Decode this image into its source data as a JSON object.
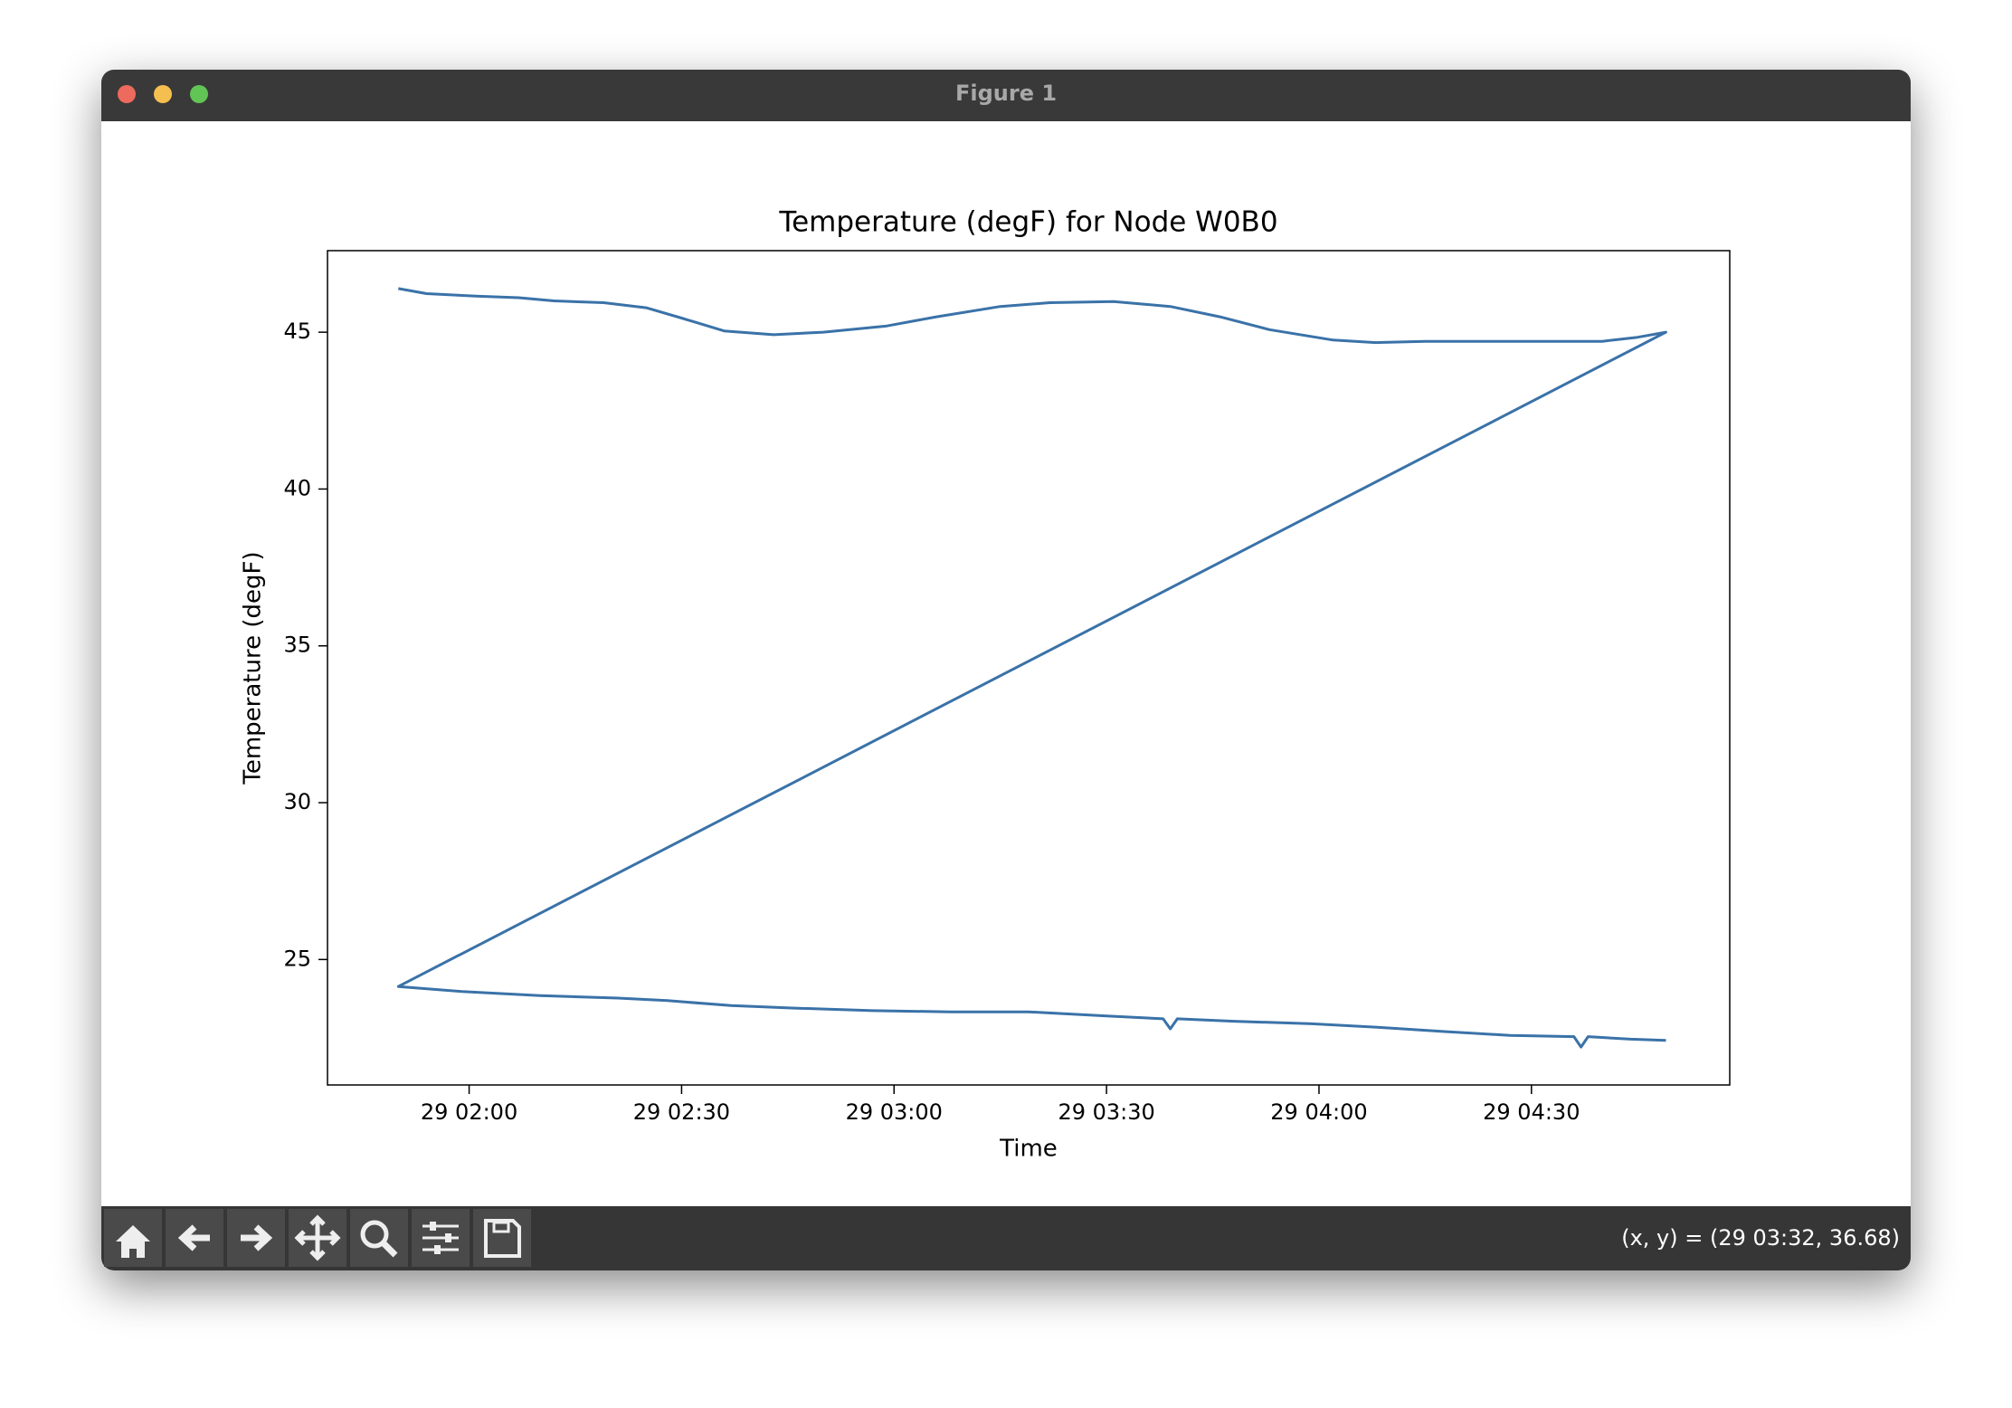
{
  "window": {
    "title": "Figure 1",
    "status": "(x, y) = (29 03:32, 36.68)"
  },
  "chart_data": {
    "type": "line",
    "title": "Temperature (degF) for Node W0B0",
    "x_label": "Time",
    "y_label": "Temperature (degF)",
    "color": "#3a72a8",
    "grid": false,
    "x": [
      "29 01:50",
      "29 01:54",
      "29 02:01",
      "29 02:07",
      "29 02:12",
      "29 02:19",
      "29 02:25",
      "29 02:30",
      "29 02:36",
      "29 02:43",
      "29 02:50",
      "29 02:59",
      "29 03:06",
      "29 03:15",
      "29 03:22",
      "29 03:31",
      "29 03:39",
      "29 03:46",
      "29 03:53",
      "29 04:02",
      "29 04:08",
      "29 04:15",
      "29 04:22",
      "29 04:31",
      "29 04:40",
      "29 04:45",
      "29 04:49",
      "29 01:50",
      "29 01:59",
      "29 02:10",
      "29 02:21",
      "29 02:28",
      "29 02:37",
      "29 02:46",
      "29 02:57",
      "29 03:08",
      "29 03:19",
      "29 03:30",
      "29 03:38",
      "29 03:39",
      "29 03:40",
      "29 03:48",
      "29 03:59",
      "29 04:09",
      "29 04:18",
      "29 04:27",
      "29 04:36",
      "29 04:37",
      "29 04:38",
      "29 04:44",
      "29 04:49"
    ],
    "values": [
      46.39,
      46.23,
      46.15,
      46.1,
      46.0,
      45.94,
      45.78,
      45.45,
      45.04,
      44.92,
      45.0,
      45.2,
      45.49,
      45.82,
      45.94,
      45.98,
      45.82,
      45.49,
      45.08,
      44.75,
      44.67,
      44.71,
      44.71,
      44.71,
      44.71,
      44.84,
      45.0,
      24.14,
      23.98,
      23.85,
      23.77,
      23.69,
      23.53,
      23.45,
      23.37,
      23.33,
      23.33,
      23.2,
      23.11,
      22.79,
      23.11,
      23.03,
      22.95,
      22.83,
      22.7,
      22.58,
      22.54,
      22.21,
      22.54,
      22.46,
      22.42
    ],
    "xlim": [
      "29 01:40",
      "29 04:58"
    ],
    "xticks": [
      "29 02:00",
      "29 02:30",
      "29 03:00",
      "29 03:30",
      "29 04:00",
      "29 04:30"
    ],
    "ylim": [
      21,
      47.6
    ],
    "yticks": [
      25,
      30,
      35,
      40,
      45
    ]
  }
}
